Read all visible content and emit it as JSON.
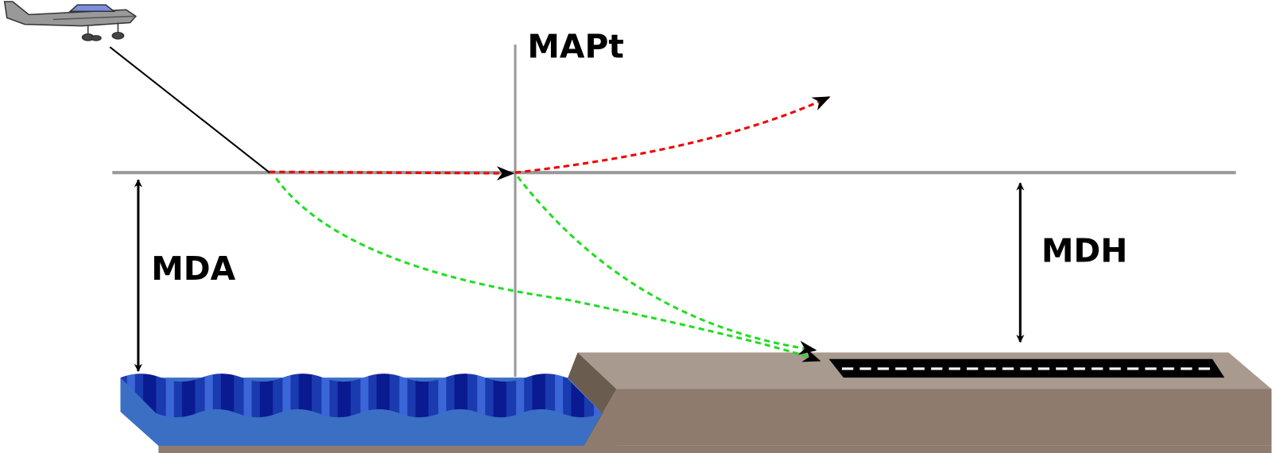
{
  "labels": {
    "mapt": "MAPt",
    "mda": "MDA",
    "mdh": "MDH"
  }
}
